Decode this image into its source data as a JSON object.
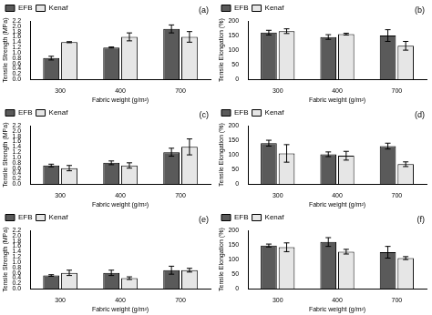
{
  "chart_data": [
    {
      "type": "bar",
      "annotation": "(a)",
      "categories": [
        "300",
        "400",
        "700"
      ],
      "series": [
        {
          "name": "EFB",
          "color": "#5a5a5a",
          "values": [
            0.8,
            1.2,
            1.9
          ],
          "errors": [
            0.07,
            0.02,
            0.15
          ]
        },
        {
          "name": "Kenaf",
          "color": "#e6e6e6",
          "values": [
            1.4,
            1.6,
            1.6
          ],
          "errors": [
            0.02,
            0.15,
            0.2
          ]
        }
      ],
      "x_label": "Fabric weight (g/m²)",
      "y_label": "Tensile Strength (MPa)",
      "ylim": [
        0,
        2.2
      ],
      "yticks": [
        {
          "value": 0,
          "label": "0.0"
        },
        {
          "value": 0.2,
          "label": "0.2"
        },
        {
          "value": 0.4,
          "label": "0.4"
        },
        {
          "value": 0.6,
          "label": "0.6"
        },
        {
          "value": 0.8,
          "label": "0.8"
        },
        {
          "value": 1,
          "label": "1.0"
        },
        {
          "value": 1.2,
          "label": "1.2"
        },
        {
          "value": 1.4,
          "label": "1.4"
        },
        {
          "value": 1.6,
          "label": "1.6"
        },
        {
          "value": 1.8,
          "label": "1.8"
        },
        {
          "value": 2,
          "label": "2.0"
        },
        {
          "value": 2.2,
          "label": "2.2"
        }
      ],
      "grid": false,
      "legend": "top-left"
    },
    {
      "type": "bar",
      "annotation": "(b)",
      "categories": [
        "300",
        "400",
        "700"
      ],
      "series": [
        {
          "name": "EFB",
          "color": "#5a5a5a",
          "values": [
            160,
            145,
            150
          ],
          "errors": [
            8,
            8,
            20
          ]
        },
        {
          "name": "Kenaf",
          "color": "#e6e6e6",
          "values": [
            165,
            155,
            115
          ],
          "errors": [
            8,
            3,
            15
          ]
        }
      ],
      "x_label": "Fabric weight (g/m²)",
      "y_label": "Tensile Elongation (%)",
      "ylim": [
        0,
        200
      ],
      "yticks": [
        0,
        50,
        100,
        150,
        200
      ],
      "grid": false,
      "legend": "top-left"
    },
    {
      "type": "bar",
      "annotation": "(c)",
      "categories": [
        "300",
        "400",
        "700"
      ],
      "series": [
        {
          "name": "EFB",
          "color": "#5a5a5a",
          "values": [
            0.7,
            0.8,
            1.2
          ],
          "errors": [
            0.05,
            0.07,
            0.15
          ]
        },
        {
          "name": "Kenaf",
          "color": "#e6e6e6",
          "values": [
            0.6,
            0.7,
            1.4
          ],
          "errors": [
            0.1,
            0.1,
            0.3
          ]
        }
      ],
      "x_label": "Fabric weight (g/m²)",
      "y_label": "Tensile Strength (MPa)",
      "ylim": [
        0,
        2.2
      ],
      "yticks": [
        {
          "value": 0,
          "label": "0.0"
        },
        {
          "value": 0.2,
          "label": "0.2"
        },
        {
          "value": 0.4,
          "label": "0.4"
        },
        {
          "value": 0.6,
          "label": "0.6"
        },
        {
          "value": 0.8,
          "label": "0.8"
        },
        {
          "value": 1,
          "label": "1.0"
        },
        {
          "value": 1.2,
          "label": "1.2"
        },
        {
          "value": 1.4,
          "label": "1.4"
        },
        {
          "value": 1.6,
          "label": "1.6"
        },
        {
          "value": 1.8,
          "label": "1.8"
        },
        {
          "value": 2,
          "label": "2.0"
        },
        {
          "value": 2.2,
          "label": "2.2"
        }
      ],
      "grid": false,
      "legend": "top-left"
    },
    {
      "type": "bar",
      "annotation": "(d)",
      "categories": [
        "300",
        "400",
        "700"
      ],
      "series": [
        {
          "name": "EFB",
          "color": "#5a5a5a",
          "values": [
            140,
            102,
            130
          ],
          "errors": [
            10,
            8,
            10
          ]
        },
        {
          "name": "Kenaf",
          "color": "#e6e6e6",
          "values": [
            105,
            97,
            68
          ],
          "errors": [
            30,
            15,
            8
          ]
        }
      ],
      "x_label": "Fabric weight (g/m²)",
      "y_label": "Tensile Elongation (%)",
      "ylim": [
        0,
        200
      ],
      "yticks": [
        0,
        50,
        100,
        150,
        200
      ],
      "grid": false,
      "legend": "top-left"
    },
    {
      "type": "bar",
      "annotation": "(e)",
      "categories": [
        "300",
        "400",
        "700"
      ],
      "series": [
        {
          "name": "EFB",
          "color": "#5a5a5a",
          "values": [
            0.5,
            0.6,
            0.7
          ],
          "errors": [
            0.03,
            0.1,
            0.15
          ]
        },
        {
          "name": "Kenaf",
          "color": "#e6e6e6",
          "values": [
            0.6,
            0.4,
            0.7
          ],
          "errors": [
            0.1,
            0.05,
            0.07
          ]
        }
      ],
      "x_label": "Fabric weight (g/m²)",
      "y_label": "Tensile Strength (MPa)",
      "ylim": [
        0,
        2.2
      ],
      "yticks": [
        {
          "value": 0,
          "label": "0.0"
        },
        {
          "value": 0.2,
          "label": "0.2"
        },
        {
          "value": 0.4,
          "label": "0.4"
        },
        {
          "value": 0.6,
          "label": "0.6"
        },
        {
          "value": 0.8,
          "label": "0.8"
        },
        {
          "value": 1,
          "label": "1.0"
        },
        {
          "value": 1.2,
          "label": "1.2"
        },
        {
          "value": 1.4,
          "label": "1.4"
        },
        {
          "value": 1.6,
          "label": "1.6"
        },
        {
          "value": 1.8,
          "label": "1.8"
        },
        {
          "value": 2,
          "label": "2.0"
        },
        {
          "value": 2.2,
          "label": "2.2"
        }
      ],
      "grid": false,
      "legend": "top-left"
    },
    {
      "type": "bar",
      "annotation": "(f)",
      "categories": [
        "300",
        "400",
        "700"
      ],
      "series": [
        {
          "name": "EFB",
          "color": "#5a5a5a",
          "values": [
            148,
            160,
            125
          ],
          "errors": [
            5,
            15,
            20
          ]
        },
        {
          "name": "Kenaf",
          "color": "#e6e6e6",
          "values": [
            142,
            127,
            105
          ],
          "errors": [
            15,
            8,
            5
          ]
        }
      ],
      "x_label": "Fabric weight (g/m²)",
      "y_label": "Tensile Elongation (%)",
      "ylim": [
        0,
        200
      ],
      "yticks": [
        0,
        50,
        100,
        150,
        200
      ],
      "grid": false,
      "legend": "top-left"
    }
  ]
}
